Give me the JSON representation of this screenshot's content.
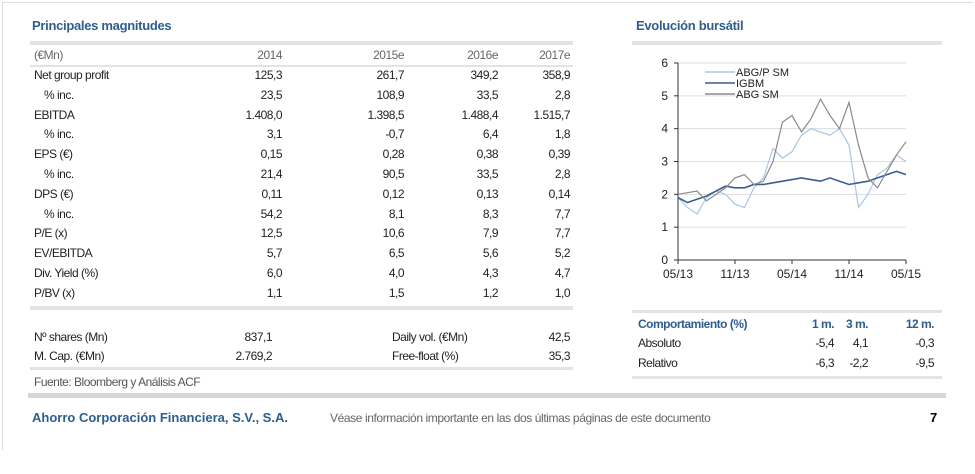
{
  "left": {
    "title": "Principales magnitudes",
    "table": {
      "headers": [
        "(€Mn)",
        "2014",
        "2015e",
        "2016e",
        "2017e"
      ],
      "rows": [
        [
          "Net group profit",
          "125,3",
          "261,7",
          "349,2",
          "358,9"
        ],
        [
          "  % inc.",
          "23,5",
          "108,9",
          "33,5",
          "2,8"
        ],
        [
          "EBITDA",
          "1.408,0",
          "1.398,5",
          "1.488,4",
          "1.515,7"
        ],
        [
          "  % inc.",
          "3,1",
          "-0,7",
          "6,4",
          "1,8"
        ],
        [
          "EPS (€)",
          "0,15",
          "0,28",
          "0,38",
          "0,39"
        ],
        [
          "  % inc.",
          "21,4",
          "90,5",
          "33,5",
          "2,8"
        ],
        [
          "DPS (€)",
          "0,11",
          "0,12",
          "0,13",
          "0,14"
        ],
        [
          "  % inc.",
          "54,2",
          "8,1",
          "8,3",
          "7,7"
        ],
        [
          "P/E (x)",
          "12,5",
          "10,6",
          "7,9",
          "7,7"
        ],
        [
          "EV/EBITDA",
          "5,7",
          "6,5",
          "5,6",
          "5,2"
        ],
        [
          "Div. Yield (%)",
          "6,0",
          "4,0",
          "4,3",
          "4,7"
        ],
        [
          "P/BV (x)",
          "1,1",
          "1,5",
          "1,2",
          "1,0"
        ]
      ]
    },
    "summary": [
      {
        "label": "Nº shares (Mn)",
        "value": "837,1",
        "label2": "Daily vol. (€Mn)",
        "value2": "42,5"
      },
      {
        "label": "M. Cap. (€Mn)",
        "value": "2.769,2",
        "label2": "Free-float (%)",
        "value2": "35,3"
      }
    ],
    "source": "Fuente: Bloomberg y Análisis ACF"
  },
  "right": {
    "title": "Evolución bursátil",
    "perf": {
      "headers": [
        "Comportamiento (%)",
        "1 m.",
        "3 m.",
        "12 m."
      ],
      "rows": [
        [
          "Absoluto",
          "-5,4",
          "4,1",
          "-0,3"
        ],
        [
          "Relativo",
          "-6,3",
          "-2,2",
          "-9,5"
        ]
      ]
    }
  },
  "chart_data": {
    "type": "line",
    "title": "",
    "xlabel": "",
    "ylabel": "",
    "ylim": [
      0,
      6
    ],
    "yticks": [
      "0",
      "1",
      "2",
      "3",
      "4",
      "5",
      "6"
    ],
    "xticks": [
      "05/13",
      "11/13",
      "05/14",
      "11/14",
      "05/15"
    ],
    "legend_position": "top-left",
    "grid": true,
    "series": [
      {
        "name": "ABG/P SM",
        "color": "#a9c6e6",
        "values": [
          1.9,
          1.6,
          1.4,
          1.9,
          2.1,
          2.0,
          1.7,
          1.6,
          2.2,
          2.5,
          3.4,
          3.1,
          3.3,
          3.8,
          4.0,
          3.9,
          3.8,
          4.0,
          3.5,
          1.6,
          2.0,
          2.6,
          2.8,
          3.2,
          3.0
        ]
      },
      {
        "name": "IGBM",
        "color": "#3a5f8f",
        "values": [
          1.9,
          1.75,
          1.85,
          1.95,
          2.1,
          2.25,
          2.2,
          2.2,
          2.3,
          2.3,
          2.35,
          2.4,
          2.45,
          2.5,
          2.45,
          2.4,
          2.5,
          2.4,
          2.3,
          2.35,
          2.4,
          2.5,
          2.6,
          2.7,
          2.6
        ]
      },
      {
        "name": "ABG SM",
        "color": "#8a8a8a",
        "values": [
          2.0,
          2.05,
          2.1,
          1.8,
          2.0,
          2.2,
          2.5,
          2.6,
          2.3,
          2.4,
          3.0,
          4.2,
          4.4,
          3.9,
          4.3,
          4.9,
          4.4,
          4.0,
          4.8,
          3.5,
          2.5,
          2.2,
          2.7,
          3.2,
          3.6
        ]
      }
    ]
  },
  "footer": {
    "company": "Ahorro Corporación Financiera, S.V., S.A.",
    "note": "Véase información importante en las dos últimas páginas de este documento",
    "page": "7"
  }
}
